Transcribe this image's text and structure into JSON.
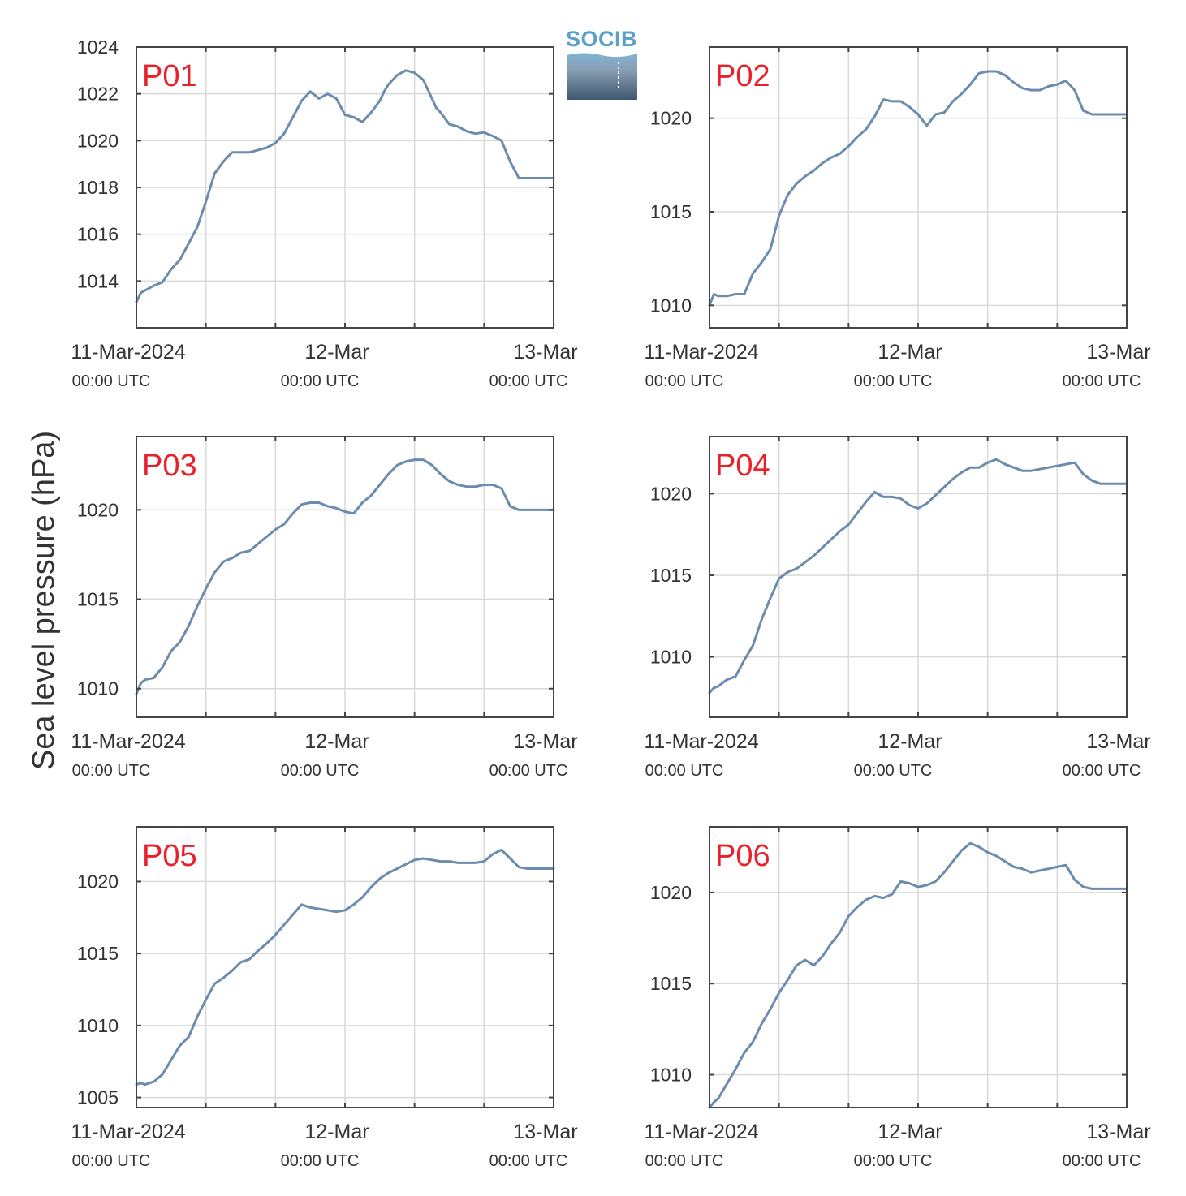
{
  "ylabel": "Sea level pressure (hPa)",
  "logo": {
    "text": "SOCIB",
    "color": "#5aa0c8"
  },
  "colors": {
    "line": "#6b8cae",
    "tag": "#e8202a",
    "grid": "#d9d9d9",
    "frame": "#444444"
  },
  "chart_data": [
    {
      "type": "line",
      "title": "P01",
      "xlim": [
        0,
        48
      ],
      "ylim": [
        1012,
        1024
      ],
      "yticks": [
        1014,
        1016,
        1018,
        1020,
        1022,
        1024
      ],
      "xticks": [
        {
          "x": 0,
          "label": "11-Mar-2024",
          "sub": "00:00 UTC"
        },
        {
          "x": 24,
          "label": "12-Mar",
          "sub": "00:00 UTC"
        },
        {
          "x": 48,
          "label": "13-Mar",
          "sub": "00:00 UTC"
        }
      ],
      "x": [
        0,
        0.5,
        1,
        2,
        3,
        4,
        5,
        6,
        7,
        8,
        9,
        10,
        11,
        12,
        13,
        14,
        15,
        16,
        17,
        18,
        19,
        20,
        21,
        22,
        22.5,
        23,
        24,
        25,
        26,
        27,
        28,
        28.5,
        29,
        30,
        31,
        32,
        33,
        34,
        34.5,
        35,
        36,
        37,
        38,
        39,
        40,
        41,
        42,
        43,
        44,
        45,
        46,
        47,
        48
      ],
      "y": [
        1013.1,
        1013.5,
        1013.6,
        1013.8,
        1013.95,
        1014.5,
        1014.9,
        1015.6,
        1016.3,
        1017.4,
        1018.6,
        1019.1,
        1019.5,
        1019.5,
        1019.5,
        1019.6,
        1019.7,
        1019.9,
        1020.3,
        1021.0,
        1021.7,
        1022.1,
        1021.8,
        1022.0,
        1021.9,
        1021.8,
        1021.1,
        1021.0,
        1020.8,
        1021.2,
        1021.7,
        1022.1,
        1022.4,
        1022.8,
        1023.0,
        1022.9,
        1022.6,
        1021.8,
        1021.4,
        1021.2,
        1020.7,
        1020.6,
        1020.4,
        1020.3,
        1020.35,
        1020.2,
        1020.0,
        1019.1,
        1018.4,
        1018.4,
        1018.4,
        1018.4,
        1018.4
      ]
    },
    {
      "type": "line",
      "title": "P02",
      "xlim": [
        0,
        48
      ],
      "ylim": [
        1008.8,
        1023.8
      ],
      "yticks": [
        1010,
        1015,
        1020
      ],
      "xticks": [
        {
          "x": 0,
          "label": "11-Mar-2024",
          "sub": "00:00 UTC"
        },
        {
          "x": 24,
          "label": "12-Mar",
          "sub": "00:00 UTC"
        },
        {
          "x": 48,
          "label": "13-Mar",
          "sub": "00:00 UTC"
        }
      ],
      "x": [
        0,
        0.5,
        1,
        2,
        3,
        4,
        5,
        6,
        7,
        8,
        9,
        10,
        11,
        12,
        13,
        14,
        15,
        16,
        17,
        18,
        19,
        20,
        21,
        22,
        23,
        24,
        25,
        26,
        27,
        28,
        29,
        30,
        31,
        32,
        33,
        34,
        35,
        36,
        37,
        38,
        39,
        40,
        41,
        42,
        43,
        44,
        45,
        46,
        47,
        48
      ],
      "y": [
        1010.0,
        1010.6,
        1010.5,
        1010.5,
        1010.6,
        1010.6,
        1011.7,
        1012.3,
        1013.0,
        1014.8,
        1015.9,
        1016.5,
        1016.9,
        1017.2,
        1017.6,
        1017.9,
        1018.1,
        1018.5,
        1019.0,
        1019.4,
        1020.1,
        1021.0,
        1020.9,
        1020.9,
        1020.6,
        1020.2,
        1019.6,
        1020.2,
        1020.3,
        1020.9,
        1021.3,
        1021.8,
        1022.4,
        1022.5,
        1022.5,
        1022.3,
        1021.9,
        1021.6,
        1021.5,
        1021.5,
        1021.7,
        1021.8,
        1022.0,
        1021.5,
        1020.4,
        1020.2,
        1020.2,
        1020.2,
        1020.2,
        1020.2
      ]
    },
    {
      "type": "line",
      "title": "P03",
      "xlim": [
        0,
        48
      ],
      "ylim": [
        1008.4,
        1024.1
      ],
      "yticks": [
        1010,
        1015,
        1020
      ],
      "xticks": [
        {
          "x": 0,
          "label": "11-Mar-2024",
          "sub": "00:00 UTC"
        },
        {
          "x": 24,
          "label": "12-Mar",
          "sub": "00:00 UTC"
        },
        {
          "x": 48,
          "label": "13-Mar",
          "sub": "00:00 UTC"
        }
      ],
      "x": [
        0,
        0.5,
        1,
        2,
        3,
        4,
        5,
        6,
        7,
        8,
        9,
        10,
        11,
        12,
        13,
        14,
        15,
        16,
        17,
        18,
        19,
        20,
        21,
        22,
        23,
        24,
        25,
        26,
        27,
        28,
        29,
        30,
        31,
        32,
        33,
        34,
        35,
        36,
        37,
        38,
        39,
        40,
        41,
        42,
        43,
        44,
        45,
        46,
        47,
        48
      ],
      "y": [
        1009.7,
        1010.3,
        1010.5,
        1010.6,
        1011.2,
        1012.1,
        1012.6,
        1013.5,
        1014.6,
        1015.6,
        1016.5,
        1017.1,
        1017.3,
        1017.6,
        1017.7,
        1018.1,
        1018.5,
        1018.9,
        1019.2,
        1019.8,
        1020.3,
        1020.4,
        1020.4,
        1020.2,
        1020.1,
        1019.9,
        1019.8,
        1020.4,
        1020.8,
        1021.4,
        1022.0,
        1022.5,
        1022.7,
        1022.8,
        1022.8,
        1022.5,
        1022.0,
        1021.6,
        1021.4,
        1021.3,
        1021.3,
        1021.4,
        1021.4,
        1021.2,
        1020.2,
        1020.0,
        1020.0,
        1020.0,
        1020.0,
        1020.0
      ]
    },
    {
      "type": "line",
      "title": "P04",
      "xlim": [
        0,
        48
      ],
      "ylim": [
        1006.3,
        1023.5
      ],
      "yticks": [
        1010,
        1015,
        1020
      ],
      "xticks": [
        {
          "x": 0,
          "label": "11-Mar-2024",
          "sub": "00:00 UTC"
        },
        {
          "x": 24,
          "label": "12-Mar",
          "sub": "00:00 UTC"
        },
        {
          "x": 48,
          "label": "13-Mar",
          "sub": "00:00 UTC"
        }
      ],
      "x": [
        0,
        0.5,
        1,
        2,
        3,
        4,
        5,
        6,
        7,
        8,
        9,
        10,
        11,
        12,
        13,
        14,
        15,
        16,
        17,
        18,
        19,
        20,
        21,
        22,
        23,
        24,
        25,
        26,
        27,
        28,
        29,
        30,
        31,
        32,
        33,
        34,
        35,
        36,
        37,
        38,
        39,
        40,
        41,
        42,
        43,
        44,
        45,
        46,
        47,
        48
      ],
      "y": [
        1007.8,
        1008.1,
        1008.2,
        1008.6,
        1008.8,
        1009.8,
        1010.7,
        1012.3,
        1013.6,
        1014.8,
        1015.2,
        1015.4,
        1015.8,
        1016.2,
        1016.7,
        1017.2,
        1017.7,
        1018.1,
        1018.8,
        1019.5,
        1020.1,
        1019.8,
        1019.8,
        1019.7,
        1019.3,
        1019.1,
        1019.4,
        1019.9,
        1020.4,
        1020.9,
        1021.3,
        1021.6,
        1021.6,
        1021.9,
        1022.1,
        1021.8,
        1021.6,
        1021.4,
        1021.4,
        1021.5,
        1021.6,
        1021.7,
        1021.8,
        1021.9,
        1021.2,
        1020.8,
        1020.6,
        1020.6,
        1020.6,
        1020.6
      ]
    },
    {
      "type": "line",
      "title": "P05",
      "xlim": [
        0,
        48
      ],
      "ylim": [
        1004.3,
        1023.8
      ],
      "yticks": [
        1005,
        1010,
        1015,
        1020
      ],
      "xticks": [
        {
          "x": 0,
          "label": "11-Mar-2024",
          "sub": "00:00 UTC"
        },
        {
          "x": 24,
          "label": "12-Mar",
          "sub": "00:00 UTC"
        },
        {
          "x": 48,
          "label": "13-Mar",
          "sub": "00:00 UTC"
        }
      ],
      "x": [
        0,
        0.5,
        1,
        2,
        3,
        4,
        5,
        6,
        7,
        8,
        9,
        10,
        11,
        12,
        13,
        14,
        15,
        16,
        17,
        18,
        19,
        20,
        21,
        22,
        23,
        24,
        25,
        26,
        27,
        28,
        29,
        30,
        31,
        32,
        33,
        34,
        35,
        36,
        37,
        38,
        39,
        40,
        41,
        42,
        43,
        44,
        45,
        46,
        47,
        48
      ],
      "y": [
        1005.9,
        1006.0,
        1005.9,
        1006.1,
        1006.6,
        1007.6,
        1008.6,
        1009.2,
        1010.6,
        1011.8,
        1012.9,
        1013.3,
        1013.8,
        1014.4,
        1014.6,
        1015.2,
        1015.7,
        1016.3,
        1017.0,
        1017.7,
        1018.4,
        1018.2,
        1018.1,
        1018.0,
        1017.9,
        1018.0,
        1018.4,
        1018.9,
        1019.6,
        1020.2,
        1020.6,
        1020.9,
        1021.2,
        1021.5,
        1021.6,
        1021.5,
        1021.4,
        1021.4,
        1021.3,
        1021.3,
        1021.3,
        1021.4,
        1021.9,
        1022.2,
        1021.6,
        1021.0,
        1020.9,
        1020.9,
        1020.9,
        1020.9
      ]
    },
    {
      "type": "line",
      "title": "P06",
      "xlim": [
        0,
        48
      ],
      "ylim": [
        1008.2,
        1023.6
      ],
      "yticks": [
        1010,
        1015,
        1020
      ],
      "xticks": [
        {
          "x": 0,
          "label": "11-Mar-2024",
          "sub": "00:00 UTC"
        },
        {
          "x": 24,
          "label": "12-Mar",
          "sub": "00:00 UTC"
        },
        {
          "x": 48,
          "label": "13-Mar",
          "sub": "00:00 UTC"
        }
      ],
      "x": [
        0,
        0.5,
        1,
        2,
        3,
        4,
        5,
        6,
        7,
        8,
        9,
        10,
        11,
        12,
        13,
        14,
        15,
        16,
        17,
        18,
        19,
        20,
        21,
        22,
        23,
        24,
        25,
        26,
        27,
        28,
        29,
        30,
        31,
        32,
        33,
        34,
        35,
        36,
        37,
        38,
        39,
        40,
        41,
        42,
        43,
        44,
        45,
        46,
        47,
        48
      ],
      "y": [
        1008.2,
        1008.5,
        1008.7,
        1009.5,
        1010.3,
        1011.2,
        1011.8,
        1012.8,
        1013.6,
        1014.5,
        1015.2,
        1016.0,
        1016.3,
        1016.0,
        1016.5,
        1017.2,
        1017.8,
        1018.7,
        1019.2,
        1019.6,
        1019.8,
        1019.7,
        1019.9,
        1020.6,
        1020.5,
        1020.3,
        1020.4,
        1020.6,
        1021.1,
        1021.7,
        1022.3,
        1022.7,
        1022.5,
        1022.2,
        1022.0,
        1021.7,
        1021.4,
        1021.3,
        1021.1,
        1021.2,
        1021.3,
        1021.4,
        1021.5,
        1020.7,
        1020.3,
        1020.2,
        1020.2,
        1020.2,
        1020.2,
        1020.2
      ]
    }
  ]
}
